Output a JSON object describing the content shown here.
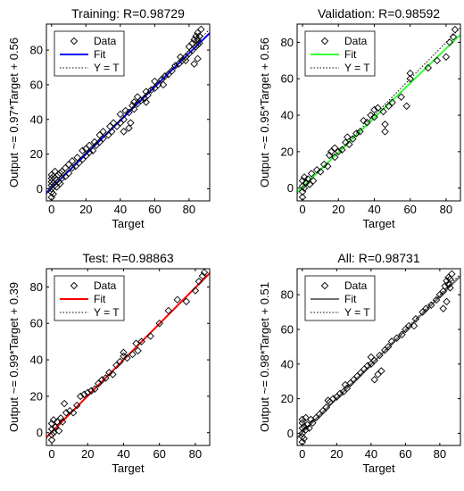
{
  "chart_data": [
    {
      "type": "scatter",
      "title": "Training: R=0.98729",
      "xlabel": "Target",
      "ylabel": "Output ~= 0.97*Target + 0.56",
      "xlim": [
        -3,
        92
      ],
      "ylim": [
        -7,
        95
      ],
      "xticks": [
        0,
        20,
        40,
        60,
        80
      ],
      "yticks": [
        0,
        20,
        40,
        60,
        80
      ],
      "fit": {
        "slope": 0.97,
        "intercept": 0.56,
        "color": "#0000ff"
      },
      "series": [
        {
          "name": "Data",
          "points": [
            [
              0,
              -5
            ],
            [
              0,
              -2
            ],
            [
              0,
              0
            ],
            [
              0,
              2
            ],
            [
              0,
              4
            ],
            [
              0,
              6
            ],
            [
              0,
              8
            ],
            [
              1,
              -3
            ],
            [
              1,
              3
            ],
            [
              1,
              7
            ],
            [
              2,
              2
            ],
            [
              2,
              6
            ],
            [
              2,
              10
            ],
            [
              3,
              1
            ],
            [
              3,
              5
            ],
            [
              4,
              4
            ],
            [
              4,
              8
            ],
            [
              5,
              3
            ],
            [
              5,
              9
            ],
            [
              6,
              6
            ],
            [
              6,
              10
            ],
            [
              8,
              7
            ],
            [
              8,
              12
            ],
            [
              10,
              9
            ],
            [
              10,
              14
            ],
            [
              12,
              12
            ],
            [
              12,
              16
            ],
            [
              14,
              13
            ],
            [
              15,
              18
            ],
            [
              16,
              15
            ],
            [
              18,
              17
            ],
            [
              18,
              22
            ],
            [
              20,
              19
            ],
            [
              20,
              23
            ],
            [
              22,
              21
            ],
            [
              22,
              25
            ],
            [
              24,
              22
            ],
            [
              25,
              27
            ],
            [
              26,
              25
            ],
            [
              28,
              27
            ],
            [
              28,
              31
            ],
            [
              30,
              29
            ],
            [
              30,
              33
            ],
            [
              33,
              31
            ],
            [
              34,
              36
            ],
            [
              35,
              33
            ],
            [
              36,
              38
            ],
            [
              38,
              36
            ],
            [
              40,
              38
            ],
            [
              40,
              43
            ],
            [
              42,
              40
            ],
            [
              43,
              45
            ],
            [
              45,
              44
            ],
            [
              46,
              38
            ],
            [
              47,
              48
            ],
            [
              48,
              46
            ],
            [
              50,
              49
            ],
            [
              50,
              53
            ],
            [
              52,
              51
            ],
            [
              54,
              52
            ],
            [
              55,
              56
            ],
            [
              56,
              54
            ],
            [
              58,
              57
            ],
            [
              60,
              58
            ],
            [
              60,
              62
            ],
            [
              62,
              60
            ],
            [
              64,
              63
            ],
            [
              65,
              60
            ],
            [
              66,
              65
            ],
            [
              68,
              66
            ],
            [
              70,
              68
            ],
            [
              72,
              71
            ],
            [
              74,
              72
            ],
            [
              75,
              76
            ],
            [
              76,
              74
            ],
            [
              78,
              76
            ],
            [
              80,
              78
            ],
            [
              80,
              82
            ],
            [
              82,
              80
            ],
            [
              82,
              84
            ],
            [
              83,
              86
            ],
            [
              84,
              82
            ],
            [
              84,
              88
            ],
            [
              85,
              83
            ],
            [
              85,
              86
            ],
            [
              85,
              90
            ],
            [
              86,
              84
            ],
            [
              86,
              88
            ],
            [
              87,
              92
            ],
            [
              85,
              75
            ],
            [
              83,
              72
            ],
            [
              78,
              74
            ],
            [
              45,
              35
            ],
            [
              42,
              33
            ],
            [
              55,
              50
            ],
            [
              48,
              50
            ]
          ]
        }
      ],
      "legend": {
        "entries": [
          "Data",
          "Fit",
          "Y = T"
        ],
        "location": "top-left"
      }
    },
    {
      "type": "scatter",
      "title": "Validation: R=0.98592",
      "xlabel": "Target",
      "ylabel": "Output ~= 0.95*Target + 0.56",
      "xlim": [
        -3,
        88
      ],
      "ylim": [
        -7,
        90
      ],
      "xticks": [
        0,
        20,
        40,
        60,
        80
      ],
      "yticks": [
        0,
        20,
        40,
        60,
        80
      ],
      "fit": {
        "slope": 0.95,
        "intercept": 0.56,
        "color": "#33ff33"
      },
      "series": [
        {
          "name": "Data",
          "points": [
            [
              0,
              -5
            ],
            [
              0,
              -2
            ],
            [
              0,
              1
            ],
            [
              0,
              4
            ],
            [
              1,
              0
            ],
            [
              1,
              6
            ],
            [
              2,
              3
            ],
            [
              3,
              5
            ],
            [
              4,
              2
            ],
            [
              5,
              8
            ],
            [
              6,
              4
            ],
            [
              8,
              10
            ],
            [
              10,
              9
            ],
            [
              12,
              13
            ],
            [
              14,
              12
            ],
            [
              15,
              18
            ],
            [
              16,
              20
            ],
            [
              18,
              17
            ],
            [
              18,
              22
            ],
            [
              20,
              20
            ],
            [
              22,
              21
            ],
            [
              24,
              25
            ],
            [
              25,
              28
            ],
            [
              26,
              24
            ],
            [
              28,
              27
            ],
            [
              30,
              30
            ],
            [
              32,
              31
            ],
            [
              34,
              37
            ],
            [
              36,
              36
            ],
            [
              38,
              40
            ],
            [
              40,
              39
            ],
            [
              40,
              43
            ],
            [
              42,
              44
            ],
            [
              45,
              42
            ],
            [
              46,
              35
            ],
            [
              46,
              31
            ],
            [
              48,
              45
            ],
            [
              50,
              47
            ],
            [
              55,
              50
            ],
            [
              58,
              45
            ],
            [
              60,
              60
            ],
            [
              60,
              63
            ],
            [
              70,
              66
            ],
            [
              75,
              70
            ],
            [
              80,
              72
            ],
            [
              82,
              80
            ],
            [
              84,
              83
            ],
            [
              85,
              87
            ]
          ]
        }
      ],
      "legend": {
        "entries": [
          "Data",
          "Fit",
          "Y = T"
        ],
        "location": "top-left"
      }
    },
    {
      "type": "scatter",
      "title": "Test: R=0.98863",
      "xlabel": "Target",
      "ylabel": "Output ~= 0.99*Target + 0.39",
      "xlim": [
        -3,
        88
      ],
      "ylim": [
        -7,
        90
      ],
      "xticks": [
        0,
        20,
        40,
        60,
        80
      ],
      "yticks": [
        0,
        20,
        40,
        60,
        80
      ],
      "fit": {
        "slope": 0.99,
        "intercept": 0.39,
        "color": "#ff0000"
      },
      "series": [
        {
          "name": "Data",
          "points": [
            [
              0,
              -4
            ],
            [
              0,
              -1
            ],
            [
              0,
              2
            ],
            [
              0,
              5
            ],
            [
              1,
              0
            ],
            [
              1,
              7
            ],
            [
              2,
              3
            ],
            [
              3,
              6
            ],
            [
              4,
              1
            ],
            [
              5,
              8
            ],
            [
              6,
              6
            ],
            [
              7,
              16
            ],
            [
              8,
              11
            ],
            [
              10,
              12
            ],
            [
              12,
              11
            ],
            [
              14,
              15
            ],
            [
              16,
              20
            ],
            [
              18,
              21
            ],
            [
              20,
              22
            ],
            [
              22,
              23
            ],
            [
              24,
              24
            ],
            [
              26,
              27
            ],
            [
              28,
              29
            ],
            [
              30,
              30
            ],
            [
              32,
              33
            ],
            [
              34,
              32
            ],
            [
              36,
              37
            ],
            [
              38,
              39
            ],
            [
              40,
              42
            ],
            [
              40,
              44
            ],
            [
              42,
              41
            ],
            [
              45,
              43
            ],
            [
              47,
              49
            ],
            [
              48,
              45
            ],
            [
              50,
              50
            ],
            [
              55,
              53
            ],
            [
              60,
              60
            ],
            [
              65,
              67
            ],
            [
              70,
              73
            ],
            [
              75,
              72
            ],
            [
              80,
              78
            ],
            [
              82,
              83
            ],
            [
              84,
              86
            ],
            [
              85,
              88
            ]
          ]
        }
      ],
      "legend": {
        "entries": [
          "Data",
          "Fit",
          "Y = T"
        ],
        "location": "top-left"
      }
    },
    {
      "type": "scatter",
      "title": "All: R=0.98731",
      "xlabel": "Target",
      "ylabel": "Output ~= 0.98*Target + 0.51",
      "xlim": [
        -3,
        92
      ],
      "ylim": [
        -7,
        95
      ],
      "xticks": [
        0,
        20,
        40,
        60,
        80
      ],
      "yticks": [
        0,
        20,
        40,
        60,
        80
      ],
      "fit": {
        "slope": 0.98,
        "intercept": 0.51,
        "color": "#707070"
      },
      "series": [
        {
          "name": "Data",
          "points": [
            [
              0,
              -5
            ],
            [
              0,
              -2
            ],
            [
              0,
              0
            ],
            [
              0,
              3
            ],
            [
              0,
              6
            ],
            [
              0,
              8
            ],
            [
              1,
              -3
            ],
            [
              1,
              4
            ],
            [
              2,
              2
            ],
            [
              2,
              9
            ],
            [
              3,
              5
            ],
            [
              4,
              3
            ],
            [
              5,
              8
            ],
            [
              6,
              6
            ],
            [
              8,
              9
            ],
            [
              10,
              11
            ],
            [
              12,
              13
            ],
            [
              14,
              15
            ],
            [
              15,
              19
            ],
            [
              16,
              18
            ],
            [
              18,
              20
            ],
            [
              20,
              21
            ],
            [
              22,
              23
            ],
            [
              24,
              24
            ],
            [
              25,
              28
            ],
            [
              26,
              26
            ],
            [
              28,
              29
            ],
            [
              30,
              31
            ],
            [
              32,
              33
            ],
            [
              34,
              35
            ],
            [
              36,
              37
            ],
            [
              38,
              39
            ],
            [
              40,
              40
            ],
            [
              40,
              44
            ],
            [
              42,
              42
            ],
            [
              45,
              45
            ],
            [
              46,
              36
            ],
            [
              48,
              48
            ],
            [
              50,
              50
            ],
            [
              52,
              53
            ],
            [
              55,
              55
            ],
            [
              58,
              57
            ],
            [
              60,
              60
            ],
            [
              62,
              62
            ],
            [
              65,
              62
            ],
            [
              66,
              66
            ],
            [
              70,
              70
            ],
            [
              72,
              72
            ],
            [
              75,
              74
            ],
            [
              78,
              77
            ],
            [
              80,
              80
            ],
            [
              82,
              82
            ],
            [
              83,
              85
            ],
            [
              84,
              88
            ],
            [
              85,
              86
            ],
            [
              85,
              90
            ],
            [
              86,
              84
            ],
            [
              86,
              89
            ],
            [
              87,
              92
            ],
            [
              84,
              76
            ],
            [
              82,
              72
            ],
            [
              44,
              34
            ],
            [
              42,
              31
            ]
          ]
        }
      ],
      "legend": {
        "entries": [
          "Data",
          "Fit",
          "Y = T"
        ],
        "location": "top-left"
      }
    }
  ]
}
